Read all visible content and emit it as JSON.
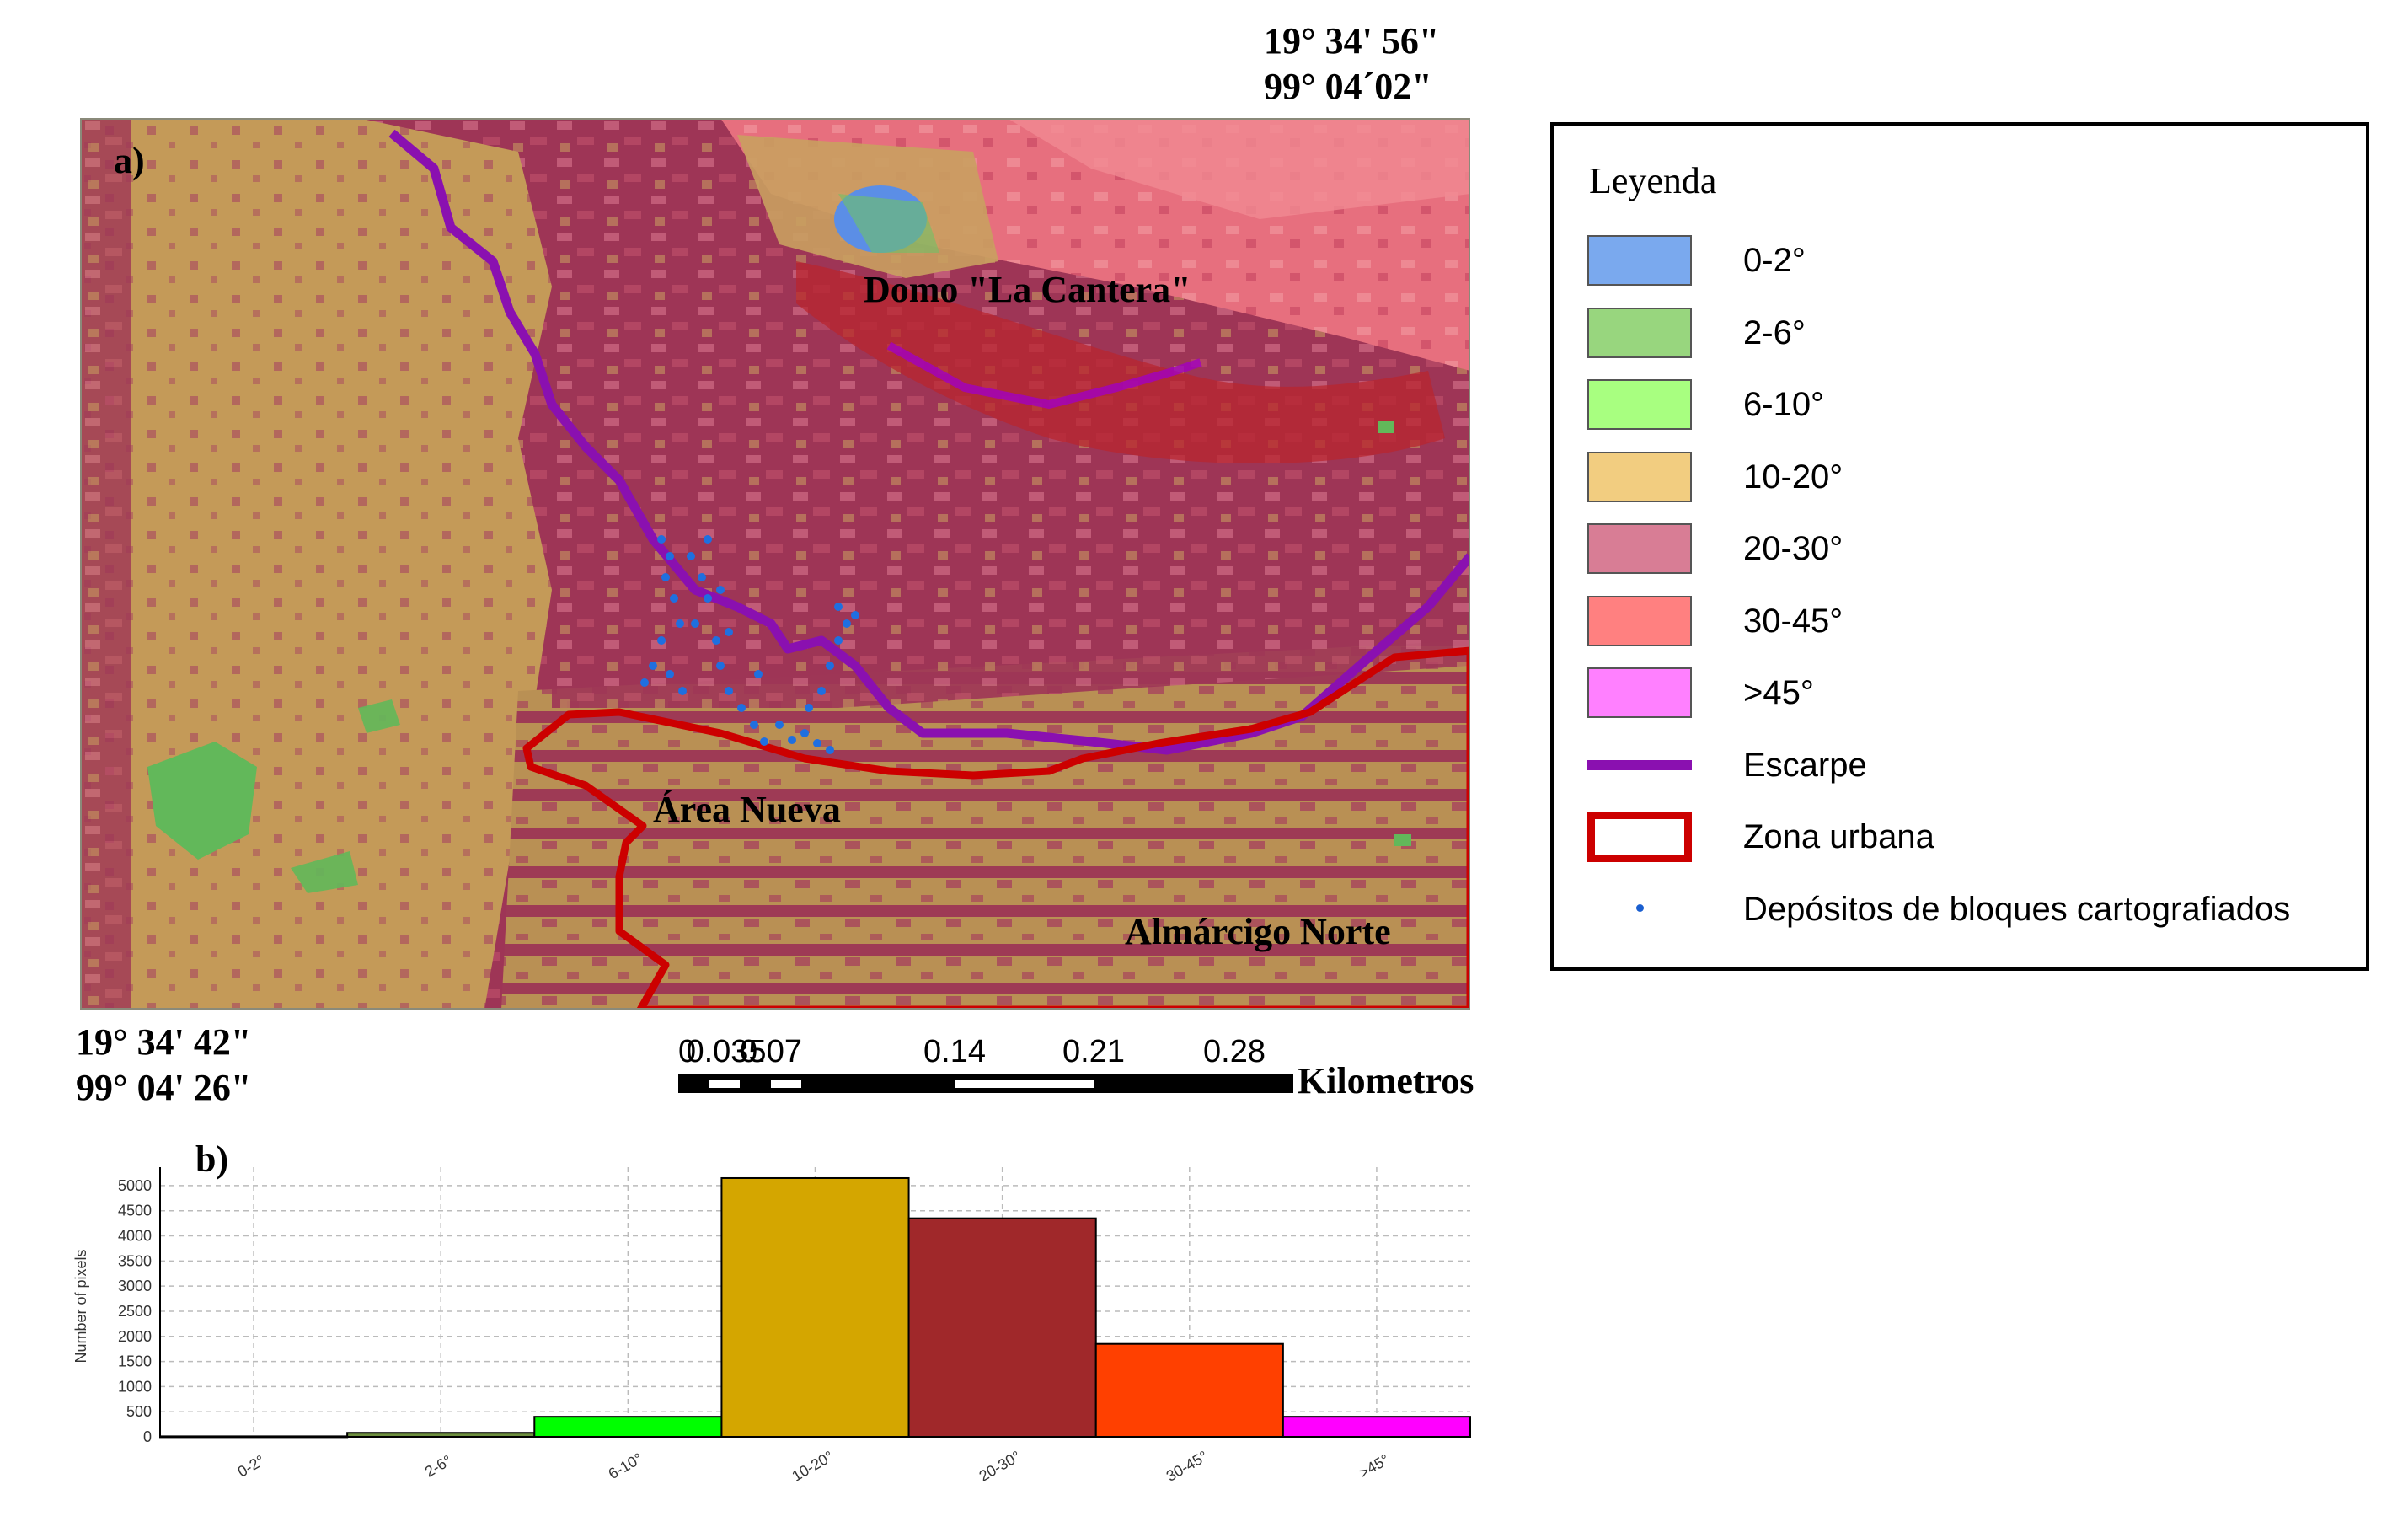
{
  "panel_a_label": "a)",
  "panel_b_label": "b)",
  "coords": {
    "top_right_lat": "19° 34' 56\"",
    "top_right_lon": "99° 04´02\"",
    "bottom_left_lat": "19° 34' 42\"",
    "bottom_left_lon": "99° 04' 26\""
  },
  "map_labels": {
    "domo": "Domo \"La Cantera\"",
    "area_nueva": "Área Nueva",
    "almarcigo": "Almárcigo Norte"
  },
  "legend": {
    "title": "Leyenda",
    "items": [
      {
        "label": "0-2°",
        "color": "#7aa9ee",
        "kind": "box"
      },
      {
        "label": "2-6°",
        "color": "#98d67e",
        "kind": "box"
      },
      {
        "label": "6-10°",
        "color": "#a8ff80",
        "kind": "box"
      },
      {
        "label": "10-20°",
        "color": "#f2cd80",
        "kind": "box"
      },
      {
        "label": "20-30°",
        "color": "#d87d95",
        "kind": "box"
      },
      {
        "label": "30-45°",
        "color": "#ff8080",
        "kind": "box"
      },
      {
        "label": ">45°",
        "color": "#ff80ff",
        "kind": "box"
      },
      {
        "label": "Escarpe",
        "color": "#8a10b0",
        "kind": "line"
      },
      {
        "label": "Zona urbana",
        "color": "#cc0000",
        "kind": "outline"
      },
      {
        "label": "Depósitos de bloques cartografiados",
        "color": "#1a5fd0",
        "kind": "dot"
      }
    ]
  },
  "scale": {
    "ticks": [
      "0",
      "0.035",
      "0.07",
      "0.14",
      "0.21",
      "0.28"
    ],
    "unit": "Kilometros"
  },
  "chart_data": {
    "type": "bar",
    "categories": [
      "0-2°",
      "2-6°",
      "6-10°",
      "10-20°",
      "20-30°",
      "30-45°",
      ">45°"
    ],
    "values": [
      10,
      80,
      400,
      5150,
      4350,
      1850,
      400
    ],
    "colors": [
      "#2b4fcc",
      "#6e8f3f",
      "#00ff00",
      "#d4a600",
      "#a0282a",
      "#ff4000",
      "#ff00ff"
    ],
    "ylabel": "Number of pixels",
    "xlabel": "",
    "ylim": [
      0,
      5200
    ],
    "yticks": [
      0,
      500,
      1000,
      1500,
      2000,
      2500,
      3000,
      3500,
      4000,
      4500,
      5000
    ],
    "grid": true
  }
}
